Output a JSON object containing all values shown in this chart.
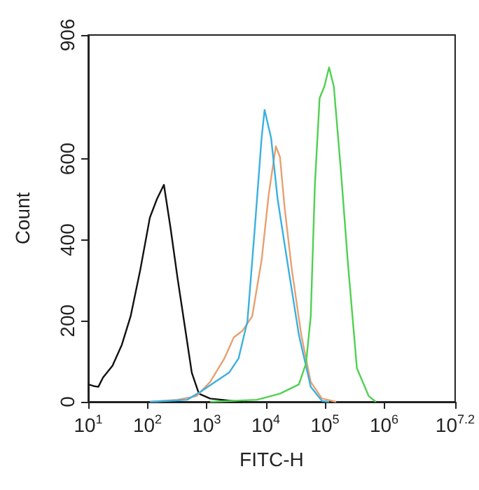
{
  "chart_data": {
    "type": "line",
    "xlabel": "FITC-H",
    "ylabel": "Count",
    "log": "x",
    "xlim": [
      10,
      15848932
    ],
    "ylim": [
      0,
      906
    ],
    "xticks": [
      {
        "value": 10,
        "label": "10$^{1}$"
      },
      {
        "value": 100,
        "label": "10$^{2}$"
      },
      {
        "value": 1000,
        "label": "10$^{3}$"
      },
      {
        "value": 10000,
        "label": "10$^{4}$"
      },
      {
        "value": 100000,
        "label": "10$^{5}$"
      },
      {
        "value": 1000000,
        "label": "10$^{6}$"
      },
      {
        "value": 15848932,
        "label": "10$^{7.2}$"
      }
    ],
    "yticks": [
      0,
      200,
      400,
      600,
      906
    ],
    "grid": false,
    "marker": "none",
    "line_style": "solid",
    "series": [
      {
        "color": "#111111",
        "x": [
          10,
          12.3,
          14.8,
          17.8,
          25.7,
          37,
          52,
          76,
          110,
          145,
          190,
          245,
          324,
          427,
          562,
          741,
          1148,
          2884,
          4074
        ],
        "values": [
          43,
          39,
          37,
          60,
          89,
          141,
          211,
          327,
          455,
          501,
          536,
          431,
          304,
          188,
          72,
          20,
          8,
          2,
          0
        ]
      },
      {
        "color": "#e8a070",
        "x": [
          110,
          324,
          676,
          1148,
          1995,
          2884,
          4074,
          5888,
          8511,
          11220,
          14791,
          17378,
          20893,
          27542,
          39811,
          57544,
          89125,
          154882
        ],
        "values": [
          0,
          5,
          14,
          49,
          107,
          159,
          176,
          211,
          350,
          512,
          631,
          605,
          478,
          327,
          165,
          49,
          8,
          0
        ]
      },
      {
        "color": "#3ab0e0",
        "x": [
          110,
          468,
          813,
          1380,
          2399,
          3467,
          4898,
          6457,
          8511,
          9550,
          12303,
          15849,
          22909,
          36308,
          57544,
          89125,
          117490
        ],
        "values": [
          0,
          5,
          26,
          49,
          72,
          107,
          199,
          420,
          652,
          721,
          652,
          501,
          350,
          165,
          37,
          2,
          0
        ]
      },
      {
        "color": "#50d050",
        "x": [
          1148,
          7079,
          17378,
          36308,
          47863,
          57544,
          67608,
          81283,
          97724,
          117490,
          141254,
          186209,
          245471,
          346737,
          549541,
          724436
        ],
        "values": [
          0,
          5,
          20,
          43,
          95,
          211,
          536,
          750,
          779,
          826,
          779,
          570,
          339,
          83,
          14,
          0
        ]
      }
    ]
  }
}
